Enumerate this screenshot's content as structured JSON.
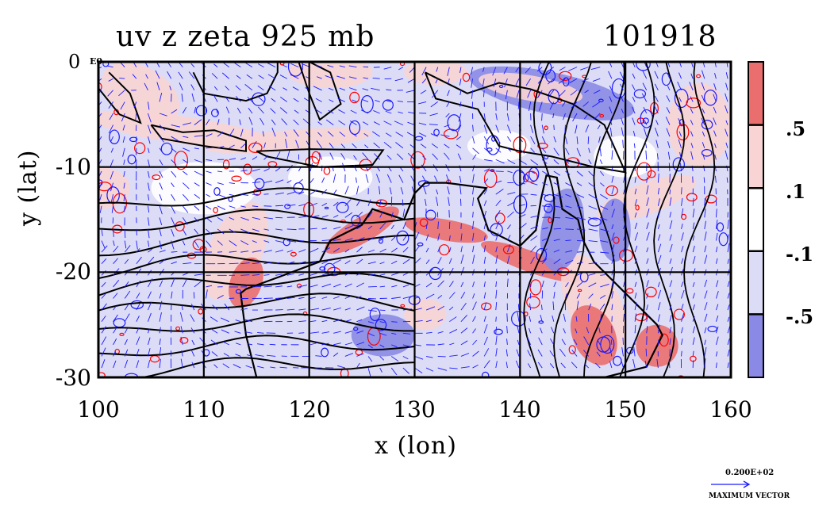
{
  "title_left": "uv z zeta 925 mb",
  "title_right": "101918",
  "corner_label": "E0",
  "colors": {
    "strong_pos": "#ea6e6e",
    "weak_pos": "#f8d4d4",
    "neutral": "#ffffff",
    "weak_neg": "#dcdcf6",
    "strong_neg": "#8a8ae6",
    "vectors": "#1a1aff",
    "contours": "#000000",
    "zeta_contours": "#ff0000"
  },
  "vector_legend": {
    "value": "0.200E+02",
    "caption": "MAXIMUM VECTOR"
  },
  "chart_data": {
    "type": "heatmap",
    "title": "uv z zeta 925 mb",
    "subtitle": "101918",
    "xlabel": "x (lon)",
    "ylabel": "y (lat)",
    "xlim": [
      100,
      160
    ],
    "ylim": [
      -30,
      0
    ],
    "xticks": [
      100,
      110,
      120,
      130,
      140,
      150,
      160
    ],
    "yticks": [
      0,
      -10,
      -20,
      -30
    ],
    "grid": true,
    "colorbar": {
      "labels": [
        ".5",
        ".1",
        "-.1",
        "-.5"
      ],
      "bins": [
        "> .5",
        ".1 to .5",
        "-.1 to .1",
        "-.5 to -.1",
        "< -.5"
      ]
    },
    "fields": [
      "uv wind vectors",
      "z geopotential contours",
      "zeta relative vorticity shading"
    ]
  }
}
